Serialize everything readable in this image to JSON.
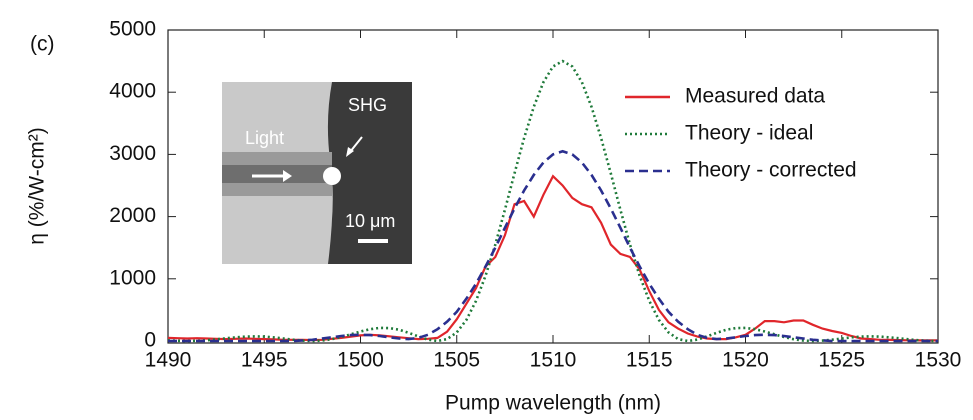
{
  "chart_data": {
    "type": "line",
    "panel_label": "(c)",
    "xlabel": "Pump wavelength (nm)",
    "ylabel": "η (%/W-cm²)",
    "inset_labels": [
      "Light",
      "SHG",
      "10 μm"
    ],
    "x": [
      1490,
      1490.5,
      1491,
      1491.5,
      1492,
      1492.5,
      1493,
      1493.5,
      1494,
      1494.5,
      1495,
      1495.5,
      1496,
      1496.5,
      1497,
      1497.5,
      1498,
      1498.5,
      1499,
      1499.5,
      1500,
      1500.5,
      1501,
      1501.5,
      1502,
      1502.5,
      1503,
      1503.5,
      1504,
      1504.5,
      1505,
      1505.5,
      1506,
      1506.5,
      1507,
      1507.5,
      1508,
      1508.5,
      1509,
      1509.5,
      1510,
      1510.5,
      1511,
      1511.5,
      1512,
      1512.5,
      1513,
      1513.5,
      1514,
      1514.5,
      1515,
      1515.5,
      1516,
      1516.5,
      1517,
      1517.5,
      1518,
      1518.5,
      1519,
      1519.5,
      1520,
      1520.5,
      1521,
      1521.5,
      1522,
      1522.5,
      1523,
      1523.5,
      1524,
      1524.5,
      1525,
      1525.5,
      1526,
      1526.5,
      1527,
      1527.5,
      1528,
      1528.5,
      1529,
      1529.5,
      1530
    ],
    "series": [
      {
        "name": "Measured data",
        "color": "#e0262b",
        "style": "solid",
        "values": [
          50,
          45,
          40,
          45,
          40,
          35,
          30,
          35,
          40,
          35,
          30,
          25,
          20,
          20,
          20,
          15,
          20,
          35,
          50,
          70,
          90,
          100,
          90,
          75,
          60,
          45,
          30,
          35,
          50,
          150,
          350,
          600,
          850,
          1200,
          1350,
          1700,
          2200,
          2250,
          2000,
          2350,
          2650,
          2500,
          2300,
          2200,
          2150,
          1900,
          1550,
          1400,
          1350,
          1150,
          800,
          500,
          300,
          200,
          120,
          70,
          40,
          30,
          30,
          60,
          100,
          200,
          320,
          320,
          300,
          330,
          330,
          260,
          200,
          160,
          130,
          80,
          40,
          30,
          20,
          18,
          15,
          12,
          10,
          10,
          10
        ]
      },
      {
        "name": "Theory - ideal",
        "color": "#1f7a3a",
        "style": "dotted",
        "values": [
          10,
          3,
          0,
          3,
          12,
          26,
          43,
          58,
          70,
          74,
          70,
          58,
          40,
          21,
          6,
          0,
          7,
          29,
          64,
          108,
          153,
          190,
          210,
          208,
          181,
          132,
          74,
          22,
          0,
          31,
          138,
          339,
          644,
          1052,
          1550,
          2109,
          2695,
          3262,
          3766,
          4160,
          4413,
          4500,
          4413,
          4160,
          3766,
          3262,
          2695,
          2109,
          1550,
          1052,
          644,
          339,
          138,
          31,
          0,
          22,
          74,
          132,
          181,
          208,
          210,
          190,
          153,
          108,
          64,
          29,
          7,
          0,
          6,
          21,
          40,
          58,
          70,
          74,
          70,
          58,
          43,
          26,
          12,
          3,
          0
        ]
      },
      {
        "name": "Theory - corrected",
        "color": "#2a2f8f",
        "style": "dashed",
        "values": [
          0,
          0,
          0,
          0,
          0,
          0,
          0,
          0,
          0,
          0,
          0,
          0,
          0,
          0,
          10,
          20,
          40,
          60,
          80,
          95,
          100,
          95,
          80,
          60,
          40,
          30,
          50,
          100,
          190,
          310,
          470,
          680,
          920,
          1200,
          1500,
          1820,
          2130,
          2420,
          2670,
          2870,
          3000,
          3050,
          3000,
          2870,
          2670,
          2420,
          2130,
          1820,
          1500,
          1200,
          920,
          680,
          470,
          310,
          190,
          100,
          50,
          30,
          40,
          60,
          80,
          95,
          100,
          95,
          80,
          60,
          40,
          20,
          10,
          0,
          0,
          0,
          0,
          0,
          0,
          0,
          0,
          0,
          0,
          0,
          0
        ]
      }
    ],
    "xlim": [
      1490,
      1530
    ],
    "xticks": [
      1490,
      1495,
      1500,
      1505,
      1510,
      1515,
      1520,
      1525,
      1530
    ],
    "ylim": [
      0,
      5000
    ],
    "yticks": [
      0,
      1000,
      2000,
      3000,
      4000,
      5000
    ],
    "legend": "upper right",
    "grid": false
  }
}
